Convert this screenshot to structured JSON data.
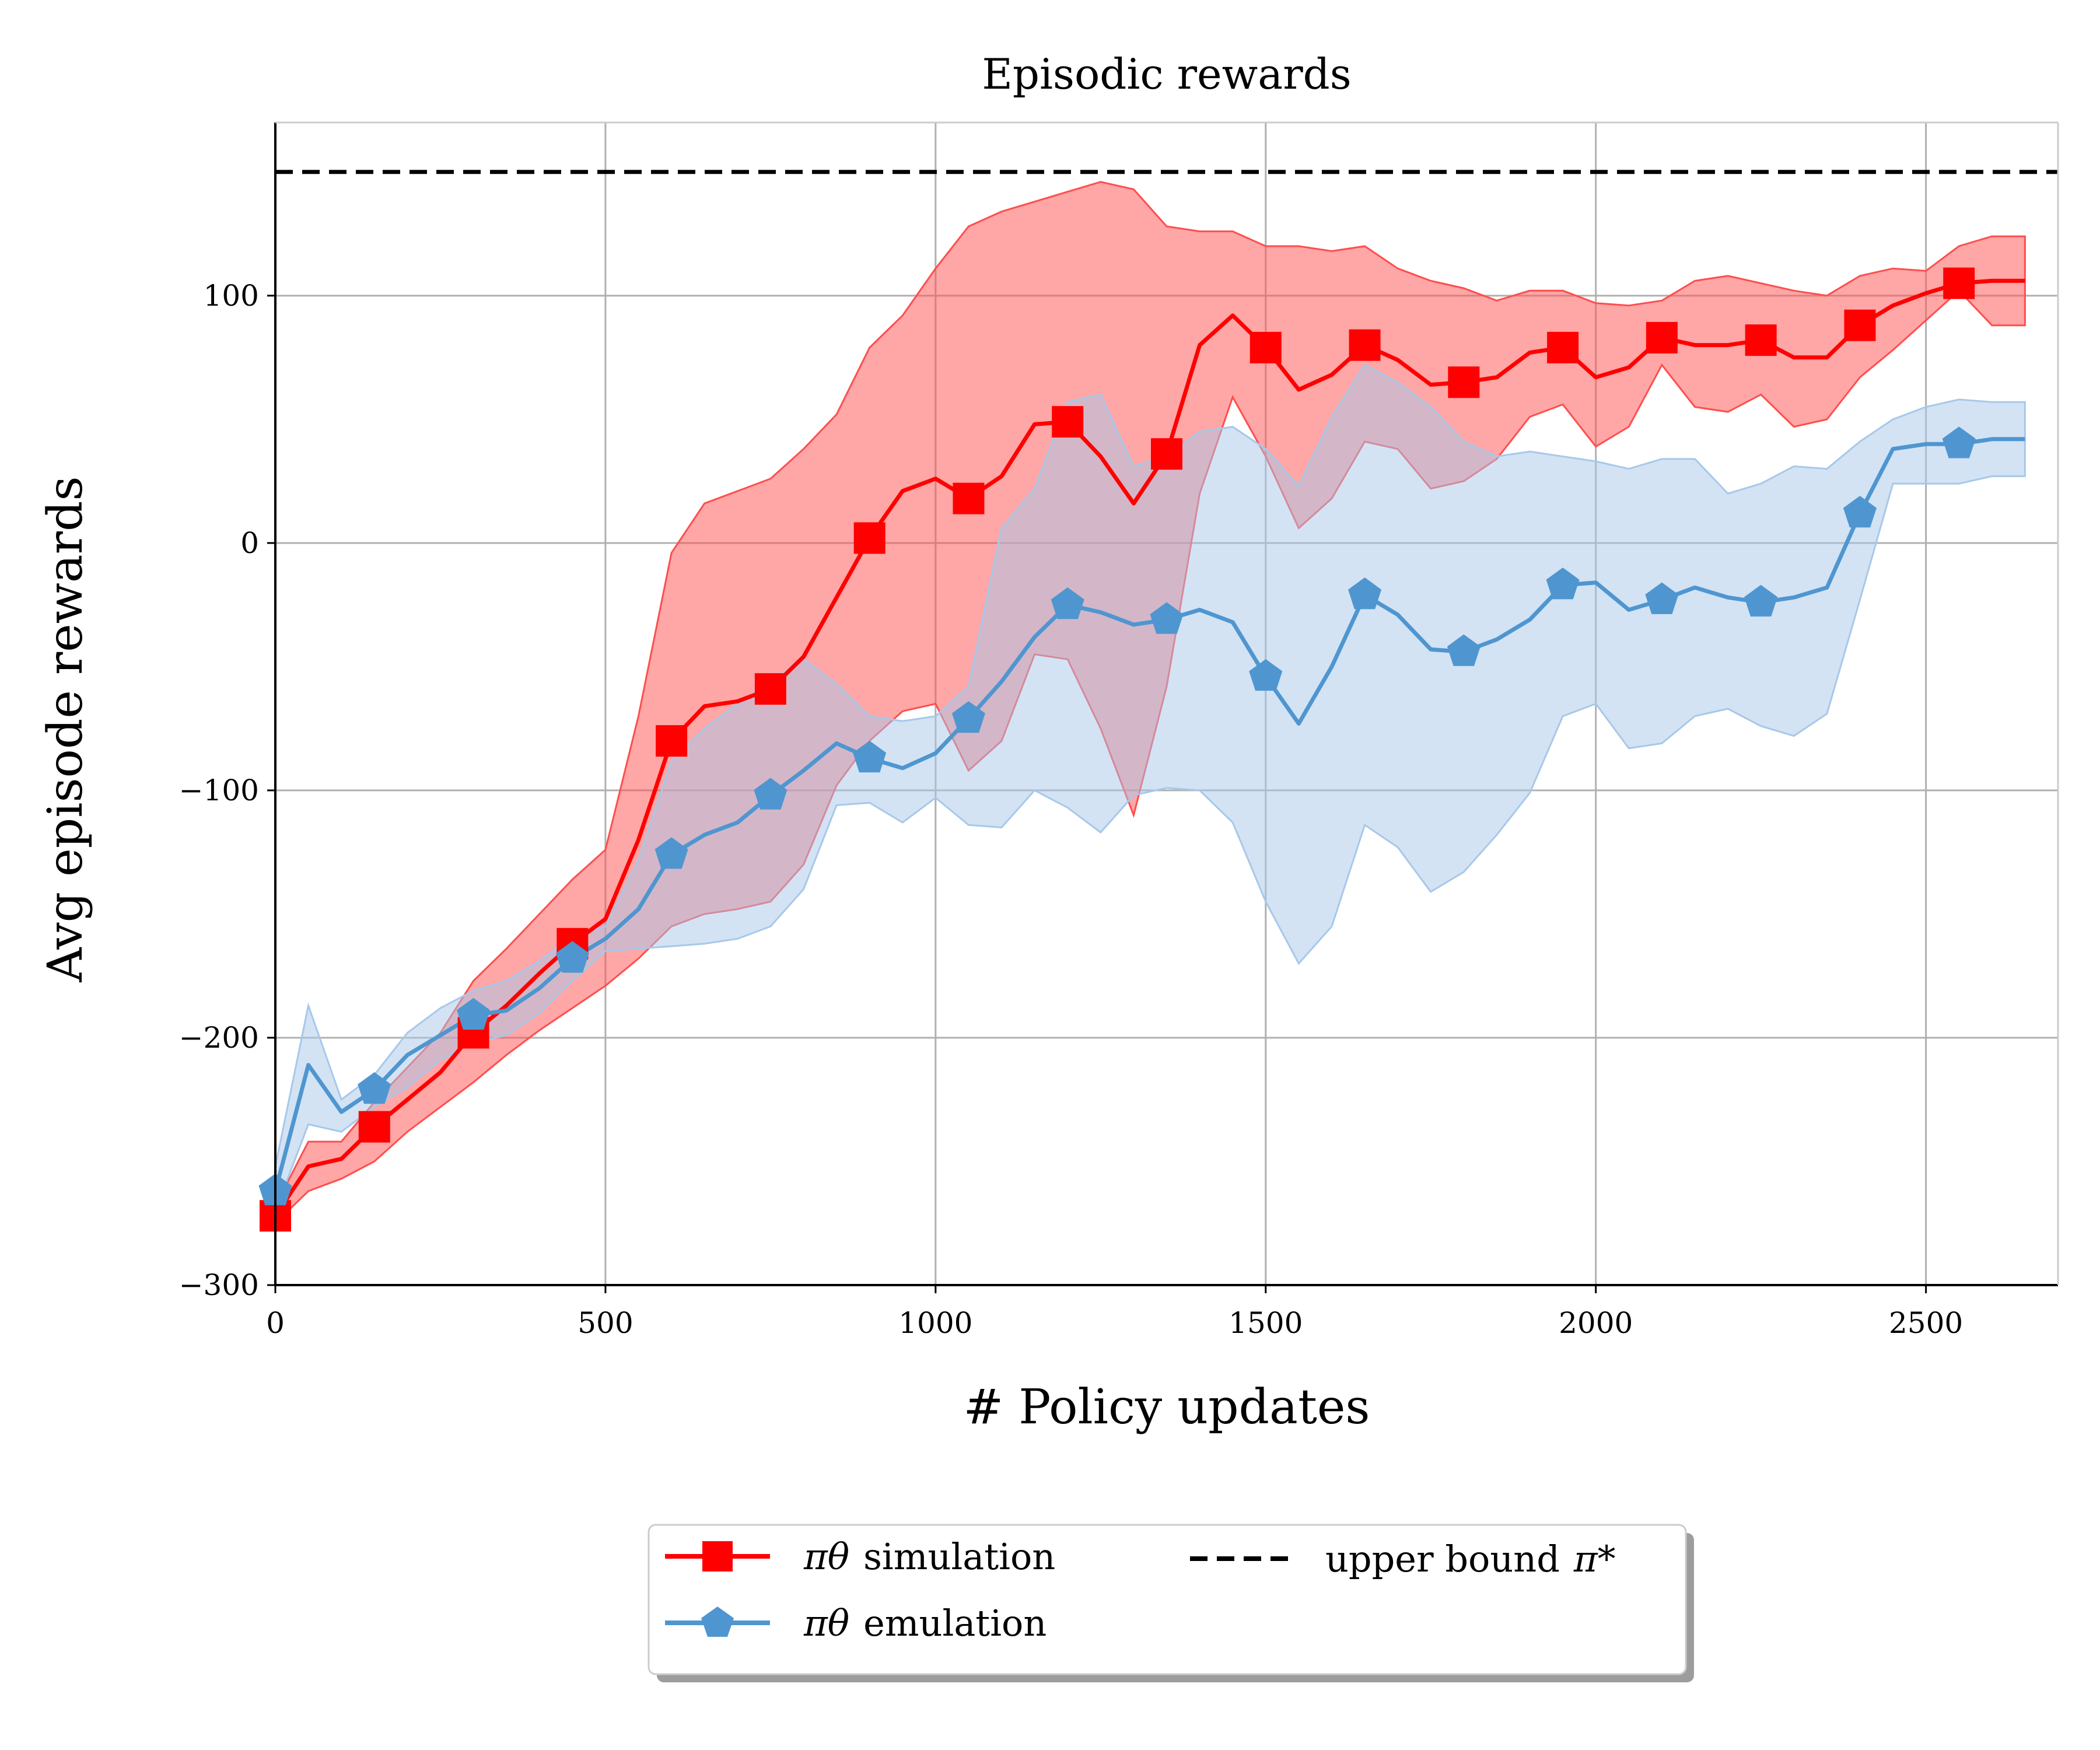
{
  "chart_data": {
    "type": "line",
    "title": "Episodic rewards",
    "xlabel": "# Policy updates",
    "ylabel": "Avg episode rewards",
    "xlim": [
      0,
      2700
    ],
    "ylim": [
      -300,
      170
    ],
    "xticks": [
      0,
      500,
      1000,
      1500,
      2000,
      2500
    ],
    "xtick_labels": [
      "0",
      "500",
      "1000",
      "1500",
      "2000",
      "2500"
    ],
    "yticks": [
      -300,
      -200,
      -100,
      0,
      100
    ],
    "ytick_labels": [
      "−300",
      "−200",
      "−100",
      "0",
      "100"
    ],
    "grid": true,
    "legend_position": "below",
    "series": [
      {
        "name": "π_θ simulation",
        "legend_symbol": "πθ",
        "legend_text": "simulation",
        "color": "#ff0000",
        "band_color": "#ff4d4d",
        "marker": "square",
        "x": [
          0,
          50,
          100,
          150,
          200,
          250,
          300,
          350,
          400,
          450,
          500,
          550,
          600,
          650,
          700,
          750,
          800,
          850,
          900,
          950,
          1000,
          1050,
          1100,
          1150,
          1200,
          1250,
          1300,
          1350,
          1400,
          1450,
          1500,
          1550,
          1600,
          1650,
          1700,
          1750,
          1800,
          1850,
          1900,
          1950,
          2000,
          2050,
          2100,
          2150,
          2200,
          2250,
          2300,
          2350,
          2400,
          2450,
          2500,
          2550,
          2600,
          2650
        ],
        "y": [
          -272,
          -252,
          -249,
          -236,
          -225,
          -214,
          -198,
          -187,
          -174,
          -162,
          -152,
          -120,
          -80,
          -66,
          -64,
          -59,
          -46,
          -22,
          2,
          21,
          26,
          18,
          27,
          48,
          49,
          35,
          16,
          36,
          80,
          92,
          79,
          62,
          68,
          80,
          74,
          64,
          65,
          67,
          77,
          79,
          67,
          71,
          83,
          80,
          80,
          82,
          75,
          75,
          88,
          96,
          101,
          105,
          106,
          106
        ],
        "lower": [
          -275,
          -262,
          -257,
          -250,
          -238,
          -228,
          -218,
          -207,
          -197,
          -188,
          -179,
          -168,
          -155,
          -150,
          -148,
          -145,
          -130,
          -98,
          -80,
          -68,
          -65,
          -92,
          -80,
          -45,
          -47,
          -75,
          -110,
          -58,
          20,
          59,
          35,
          6,
          18,
          41,
          38,
          22,
          25,
          34,
          51,
          56,
          39,
          47,
          72,
          55,
          53,
          60,
          47,
          50,
          67,
          78,
          90,
          102,
          88,
          88
        ],
        "upper": [
          -268,
          -242,
          -242,
          -226,
          -212,
          -198,
          -177,
          -164,
          -150,
          -136,
          -124,
          -70,
          -4,
          16,
          21,
          26,
          38,
          52,
          79,
          92,
          111,
          128,
          134,
          138,
          142,
          146,
          143,
          128,
          126,
          126,
          120,
          120,
          118,
          120,
          111,
          106,
          103,
          98,
          102,
          102,
          97,
          96,
          98,
          106,
          108,
          105,
          102,
          100,
          108,
          111,
          110,
          120,
          124,
          124
        ]
      },
      {
        "name": "π_θ emulation",
        "legend_symbol": "πθ",
        "legend_text": "emulation",
        "color": "#4f96d0",
        "band_color": "#a7c8e9",
        "marker": "pentagon",
        "x": [
          0,
          50,
          100,
          150,
          200,
          250,
          300,
          350,
          400,
          450,
          500,
          550,
          600,
          650,
          700,
          750,
          800,
          850,
          900,
          950,
          1000,
          1050,
          1100,
          1150,
          1200,
          1250,
          1300,
          1350,
          1400,
          1450,
          1500,
          1550,
          1600,
          1650,
          1700,
          1750,
          1800,
          1850,
          1900,
          1950,
          2000,
          2050,
          2100,
          2150,
          2200,
          2250,
          2300,
          2350,
          2400,
          2450,
          2500,
          2550,
          2600,
          2650
        ],
        "y": [
          -262,
          -211,
          -230,
          -221,
          -207,
          -199,
          -191,
          -189,
          -180,
          -168,
          -160,
          -148,
          -126,
          -118,
          -113,
          -102,
          -92,
          -81,
          -87,
          -91,
          -85,
          -71,
          -56,
          -38,
          -25,
          -28,
          -33,
          -31,
          -27,
          -32,
          -54,
          -73,
          -50,
          -21,
          -29,
          -43,
          -44,
          -39,
          -31,
          -17,
          -16,
          -27,
          -23,
          -18,
          -22,
          -24,
          -22,
          -18,
          12,
          38,
          40,
          40,
          42,
          42
        ],
        "lower": [
          -270,
          -235,
          -238,
          -228,
          -220,
          -209,
          -202,
          -199,
          -190,
          -177,
          -165,
          -164,
          -163,
          -162,
          -160,
          -155,
          -140,
          -106,
          -105,
          -113,
          -103,
          -114,
          -115,
          -100,
          -107,
          -117,
          -102,
          -99,
          -100,
          -113,
          -145,
          -170,
          -155,
          -114,
          -123,
          -141,
          -133,
          -118,
          -101,
          -70,
          -65,
          -83,
          -81,
          -70,
          -67,
          -74,
          -78,
          -69,
          -23,
          24,
          24,
          24,
          27,
          27
        ],
        "upper": [
          -252,
          -187,
          -225,
          -215,
          -198,
          -188,
          -181,
          -177,
          -169,
          -159,
          -155,
          -128,
          -88,
          -75,
          -65,
          -56,
          -47,
          -57,
          -70,
          -72,
          -70,
          -58,
          6,
          22,
          57,
          60,
          31,
          35,
          45,
          47,
          38,
          23,
          51,
          72,
          65,
          55,
          41,
          35,
          37,
          35,
          33,
          30,
          34,
          34,
          20,
          24,
          31,
          30,
          41,
          50,
          55,
          58,
          57,
          57
        ]
      },
      {
        "name": "upper bound π*",
        "legend_text": "upper bound",
        "legend_symbol": "π*",
        "color": "#000000",
        "style": "dashed",
        "x": [
          0,
          2700
        ],
        "y": [
          150,
          150
        ]
      }
    ]
  }
}
